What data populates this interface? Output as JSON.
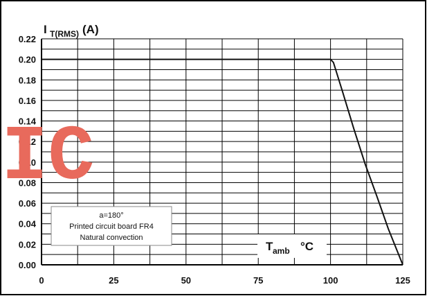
{
  "chart_data": {
    "type": "line",
    "title": "",
    "ylabel": {
      "main": "I",
      "sub": "T(RMS)",
      "unit": "(A)"
    },
    "xlabel": {
      "main": "T",
      "sub": "amb",
      "unit": "°C"
    },
    "xlim": [
      0,
      125
    ],
    "ylim": [
      0,
      0.22
    ],
    "x_ticks": [
      "0",
      "25",
      "50",
      "75",
      "100",
      "125"
    ],
    "y_ticks": [
      "0.00",
      "0.02",
      "0.04",
      "0.06",
      "0.08",
      "0.10",
      "0.12",
      "0.14",
      "0.16",
      "0.18",
      "0.20",
      "0.22"
    ],
    "series": [
      {
        "x": [
          0,
          25,
          50,
          75,
          100,
          101,
          104,
          108,
          112,
          116,
          120,
          125
        ],
        "y": [
          0.2,
          0.2,
          0.2,
          0.2,
          0.2,
          0.197,
          0.17,
          0.133,
          0.098,
          0.067,
          0.035,
          0.0
        ],
        "color": "#111111"
      }
    ],
    "annotation": [
      "a=180°",
      "Printed circuit board FR4",
      "Natural convection"
    ],
    "grid": true
  },
  "watermark": "IC"
}
